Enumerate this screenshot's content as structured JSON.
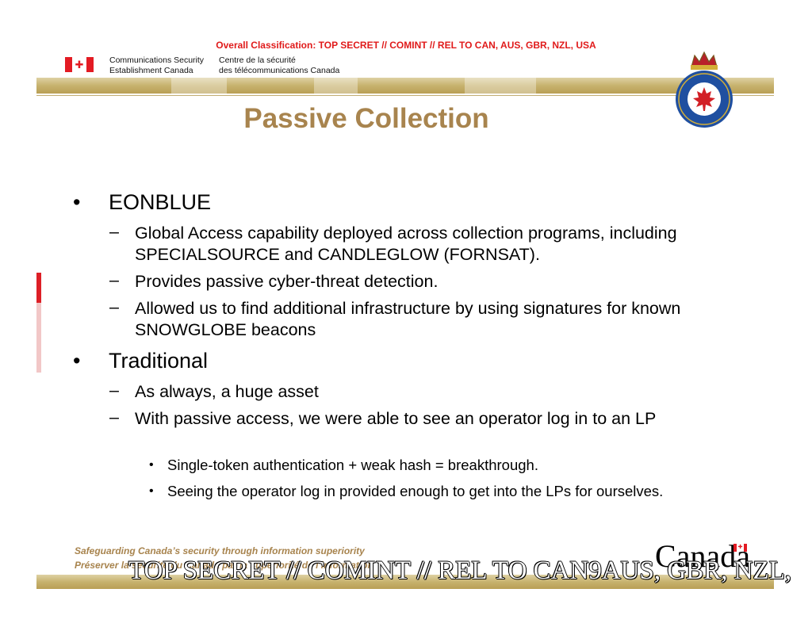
{
  "header": {
    "classification": "Overall Classification: TOP SECRET // COMINT // REL TO CAN, AUS, GBR, NZL, USA",
    "agency_en": [
      "Communications Security",
      "Establishment Canada"
    ],
    "agency_fr": [
      "Centre de la sécurité",
      "des télécommunications Canada"
    ],
    "crest_icon": "cse-crest-icon"
  },
  "title": "Passive Collection",
  "content": {
    "section1": {
      "heading": "EONBLUE",
      "items": [
        "Global Access capability deployed across collection programs, including SPECIALSOURCE and CANDLEGLOW (FORNSAT).",
        "Provides passive cyber-threat detection.",
        "Allowed us to find additional infrastructure by using signatures for known SNOWGLOBE beacons"
      ]
    },
    "section2": {
      "heading": "Traditional",
      "items": [
        "As always, a huge asset",
        "With passive access, we were able to see an operator log in to an LP"
      ],
      "subitems": [
        "Single-token authentication + weak hash = breakthrough.",
        "Seeing the operator log in provided enough to get into the LPs for ourselves."
      ]
    }
  },
  "footer": {
    "tagline_en": "Safeguarding Canada’s security through information superiority",
    "tagline_fr": "Préserver la sécurité du Canada par la supériorité de l’information",
    "wordmark": "Canada",
    "classification": "TOP SECRET // COMINT // REL TO CAN9AUS, GBR, NZL,"
  },
  "colors": {
    "classification_red": "#e01a1a",
    "title_gold": "#a8844e",
    "band_gold": "#c7b26e",
    "flag_red": "#e31b23"
  }
}
